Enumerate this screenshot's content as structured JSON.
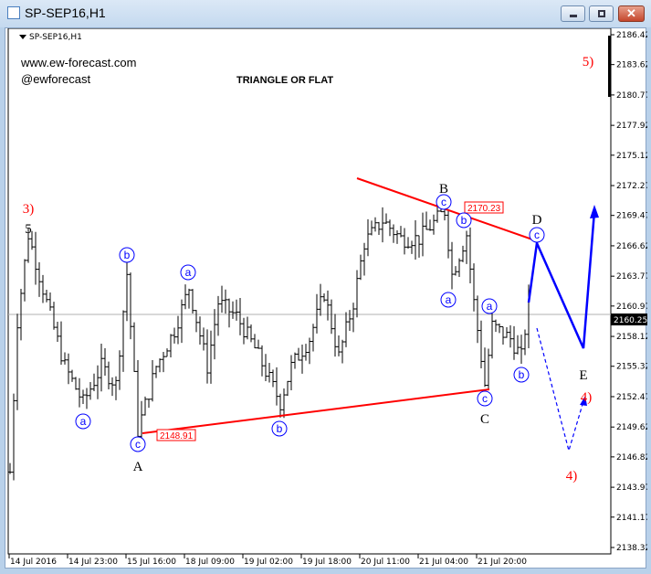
{
  "window": {
    "title": "SP-SEP16,H1",
    "minimize_icon": "minimize-icon",
    "maximize_icon": "maximize-icon",
    "close_icon": "close-icon"
  },
  "chart_header": {
    "symbol": "SP-SEP16,H1",
    "website": "www.ew-forecast.com",
    "twitter": "@ewforecast",
    "headline": "TRIANGLE OR FLAT"
  },
  "colors": {
    "bars": "#000000",
    "trendline": "#ff0000",
    "projection": "#0000ff",
    "wave_label_red": "#ff0000",
    "circle_label": "#0000ff"
  },
  "chart_data": {
    "type": "ohlc",
    "y_ticks": [
      "2186.42",
      "2183.62",
      "2180.77",
      "2177.92",
      "2175.12",
      "2172.27",
      "2169.47",
      "2166.62",
      "2163.77",
      "2160.97",
      "2158.12",
      "2155.32",
      "2152.47",
      "2149.62",
      "2146.82",
      "2143.97",
      "2141.17",
      "2138.32"
    ],
    "ylim": [
      2138.32,
      2186.42
    ],
    "x_ticks": [
      "14 Jul 2016",
      "14 Jul 23:00",
      "15 Jul 16:00",
      "18 Jul 09:00",
      "19 Jul 02:00",
      "19 Jul 18:00",
      "20 Jul 11:00",
      "21 Jul 04:00",
      "21 Jul 20:00"
    ],
    "current_price": "2160.25",
    "price_path": [
      [
        0,
        2145.4
      ],
      [
        2,
        2159.6
      ],
      [
        5,
        2167.7
      ],
      [
        10,
        2161.3
      ],
      [
        15,
        2155.3
      ],
      [
        20,
        2151.9
      ],
      [
        25,
        2155.3
      ],
      [
        29,
        2153.6
      ],
      [
        32,
        2164.0
      ],
      [
        35,
        2149.3
      ],
      [
        40,
        2155.3
      ],
      [
        45,
        2158.7
      ],
      [
        49,
        2162.7
      ],
      [
        54,
        2155.3
      ],
      [
        57,
        2161.3
      ],
      [
        62,
        2160.0
      ],
      [
        67,
        2157.0
      ],
      [
        74,
        2151.9
      ],
      [
        77,
        2155.3
      ],
      [
        82,
        2157.9
      ],
      [
        86,
        2162.2
      ],
      [
        90,
        2156.2
      ],
      [
        94,
        2161.3
      ],
      [
        97,
        2166.9
      ],
      [
        102,
        2169.0
      ],
      [
        107,
        2167.3
      ],
      [
        112,
        2167.3
      ],
      [
        119,
        2169.9
      ],
      [
        121,
        2163.9
      ],
      [
        125,
        2167.7
      ],
      [
        127,
        2161.3
      ],
      [
        130,
        2153.6
      ],
      [
        132,
        2159.1
      ],
      [
        137,
        2157.9
      ],
      [
        140,
        2156.2
      ],
      [
        142,
        2161.3
      ]
    ],
    "price_boxes": [
      "2170.23",
      "2148.91"
    ],
    "wave_labels": [
      "3)",
      "5",
      "b",
      "a",
      "c",
      "A",
      "a",
      "b",
      "B",
      "c",
      "b",
      "a",
      "a",
      "c",
      "C",
      "b",
      "D",
      "c",
      "E",
      "4)",
      "4)",
      "5)"
    ]
  }
}
